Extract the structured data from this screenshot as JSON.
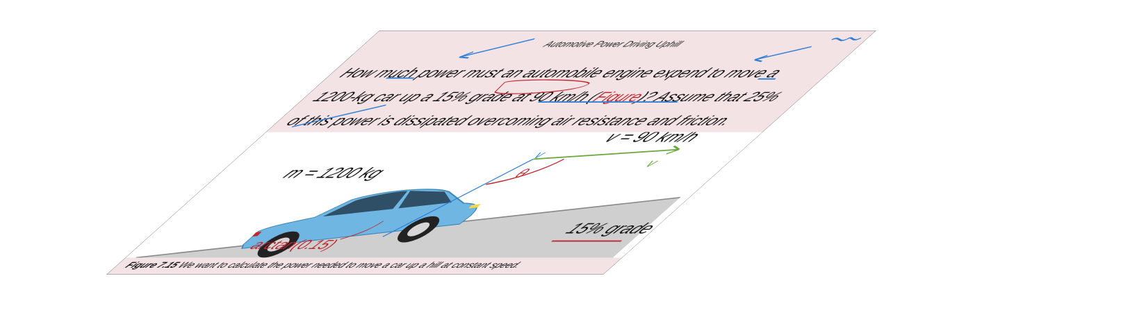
{
  "document": {
    "title": "Automotive Power Driving Uphill",
    "problem_before_link": "How much power must an automobile engine expend to move a 1200-kg car up a 15% grade at 90 km/h (",
    "figure_link": "Figure",
    "problem_after_link": ")? Assume that 25% of this power is dissipated overcoming air resistance and friction."
  },
  "figure": {
    "mass_label": "m = 1200 kg",
    "velocity_label": "v = 90 km/h",
    "grade_label": "15% grade",
    "annotation_angle": "arctan(0.15)",
    "annotation_theta": "θ",
    "annotation_v": "v",
    "annotation_component": "v"
  },
  "caption": {
    "label": "Figure 7.15",
    "text": " We want to calculate the power needed to move a car up a hill at constant speed."
  },
  "colors": {
    "sheet_background": "#f3e3e5",
    "link": "#c0262d",
    "annotation_blue": "#2f7fd6",
    "annotation_red": "#c0262d",
    "annotation_green": "#6aa63a",
    "car_body": "#6fb6e2",
    "ramp": "#cfcfcf"
  }
}
